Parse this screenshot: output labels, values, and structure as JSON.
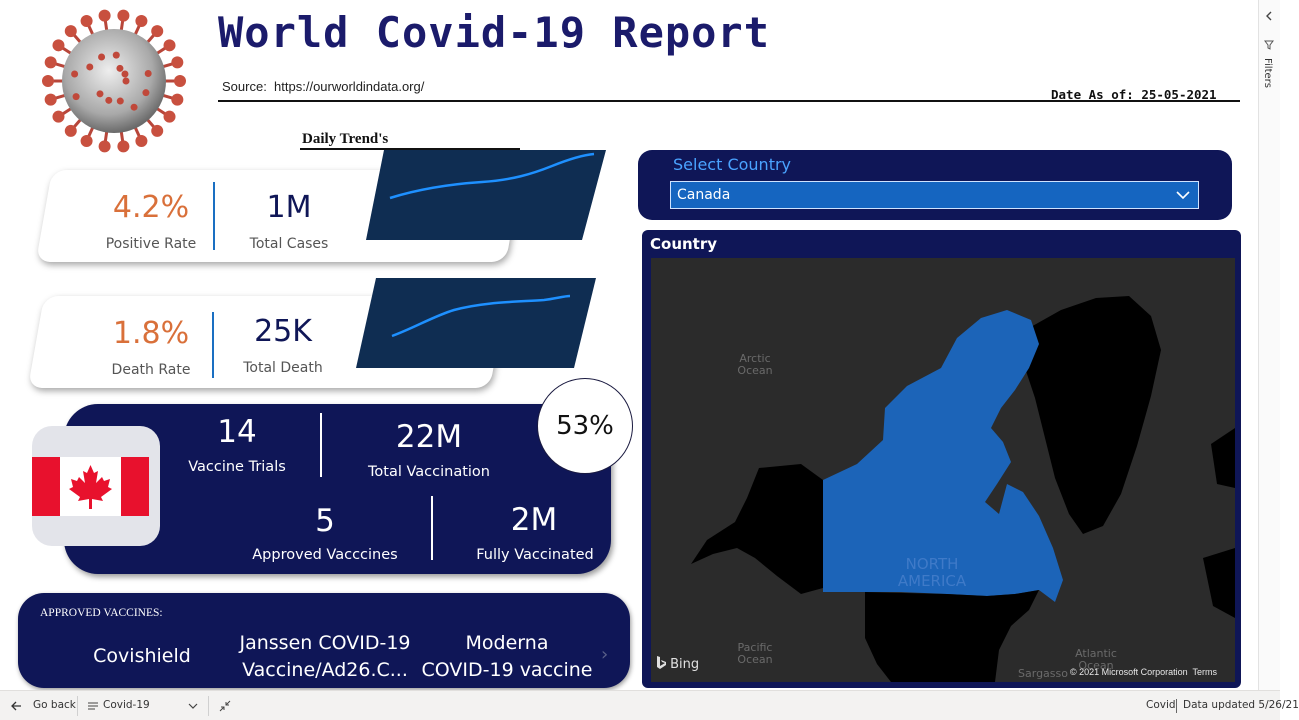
{
  "header": {
    "title": "World Covid-19 Report",
    "source_label": "Source:",
    "source_url": "https://ourworldindata.org/",
    "date_label": "Date As of:",
    "date_value": "25-05-2021",
    "trend_title": "Daily Trend's"
  },
  "kpis": {
    "positive_rate": {
      "value": "4.2%",
      "label": "Positive Rate"
    },
    "total_cases": {
      "value": "1M",
      "label": "Total Cases"
    },
    "death_rate": {
      "value": "1.8%",
      "label": "Death Rate"
    },
    "total_death": {
      "value": "25K",
      "label": "Total Death"
    }
  },
  "vaccines": {
    "trials": {
      "value": "14",
      "label": "Vaccine Trials"
    },
    "total": {
      "value": "22M",
      "label": "Total Vaccination"
    },
    "approved": {
      "value": "5",
      "label": "Approved Vacccines"
    },
    "fully": {
      "value": "2M",
      "label": "Fully Vaccinated"
    },
    "percent": "53%"
  },
  "approved_list": {
    "heading": "APPROVED VACCINES:",
    "items": [
      {
        "line1": "Covishield",
        "line2": ""
      },
      {
        "line1": "Janssen COVID-19",
        "line2": "Vaccine/Ad26.C..."
      },
      {
        "line1": "Moderna",
        "line2": "COVID-19 vaccine"
      }
    ]
  },
  "selector": {
    "label": "Select Country",
    "value": "Canada"
  },
  "map": {
    "title": "Country",
    "labels": {
      "arctic": "Arctic\nOcean",
      "pacific": "Pacific\nOcean",
      "atlantic": "Atlantic\nOcean",
      "north_america": "NORTH\nAMERICA",
      "sargasso": "Sargasso"
    },
    "bing": "Bing",
    "copyright": "© 2021 Microsoft Corporation",
    "terms": "Terms"
  },
  "filters_label": "Filters",
  "bottom_bar": {
    "go_back": "Go back",
    "page": "Covid-19",
    "report": "Covid",
    "data_updated": "Data updated 5/26/21"
  },
  "colors": {
    "navy": "#0f1657",
    "accent_orange": "#d9703a",
    "selector_blue": "#1565c0",
    "map_highlight": "#1c64b8"
  }
}
